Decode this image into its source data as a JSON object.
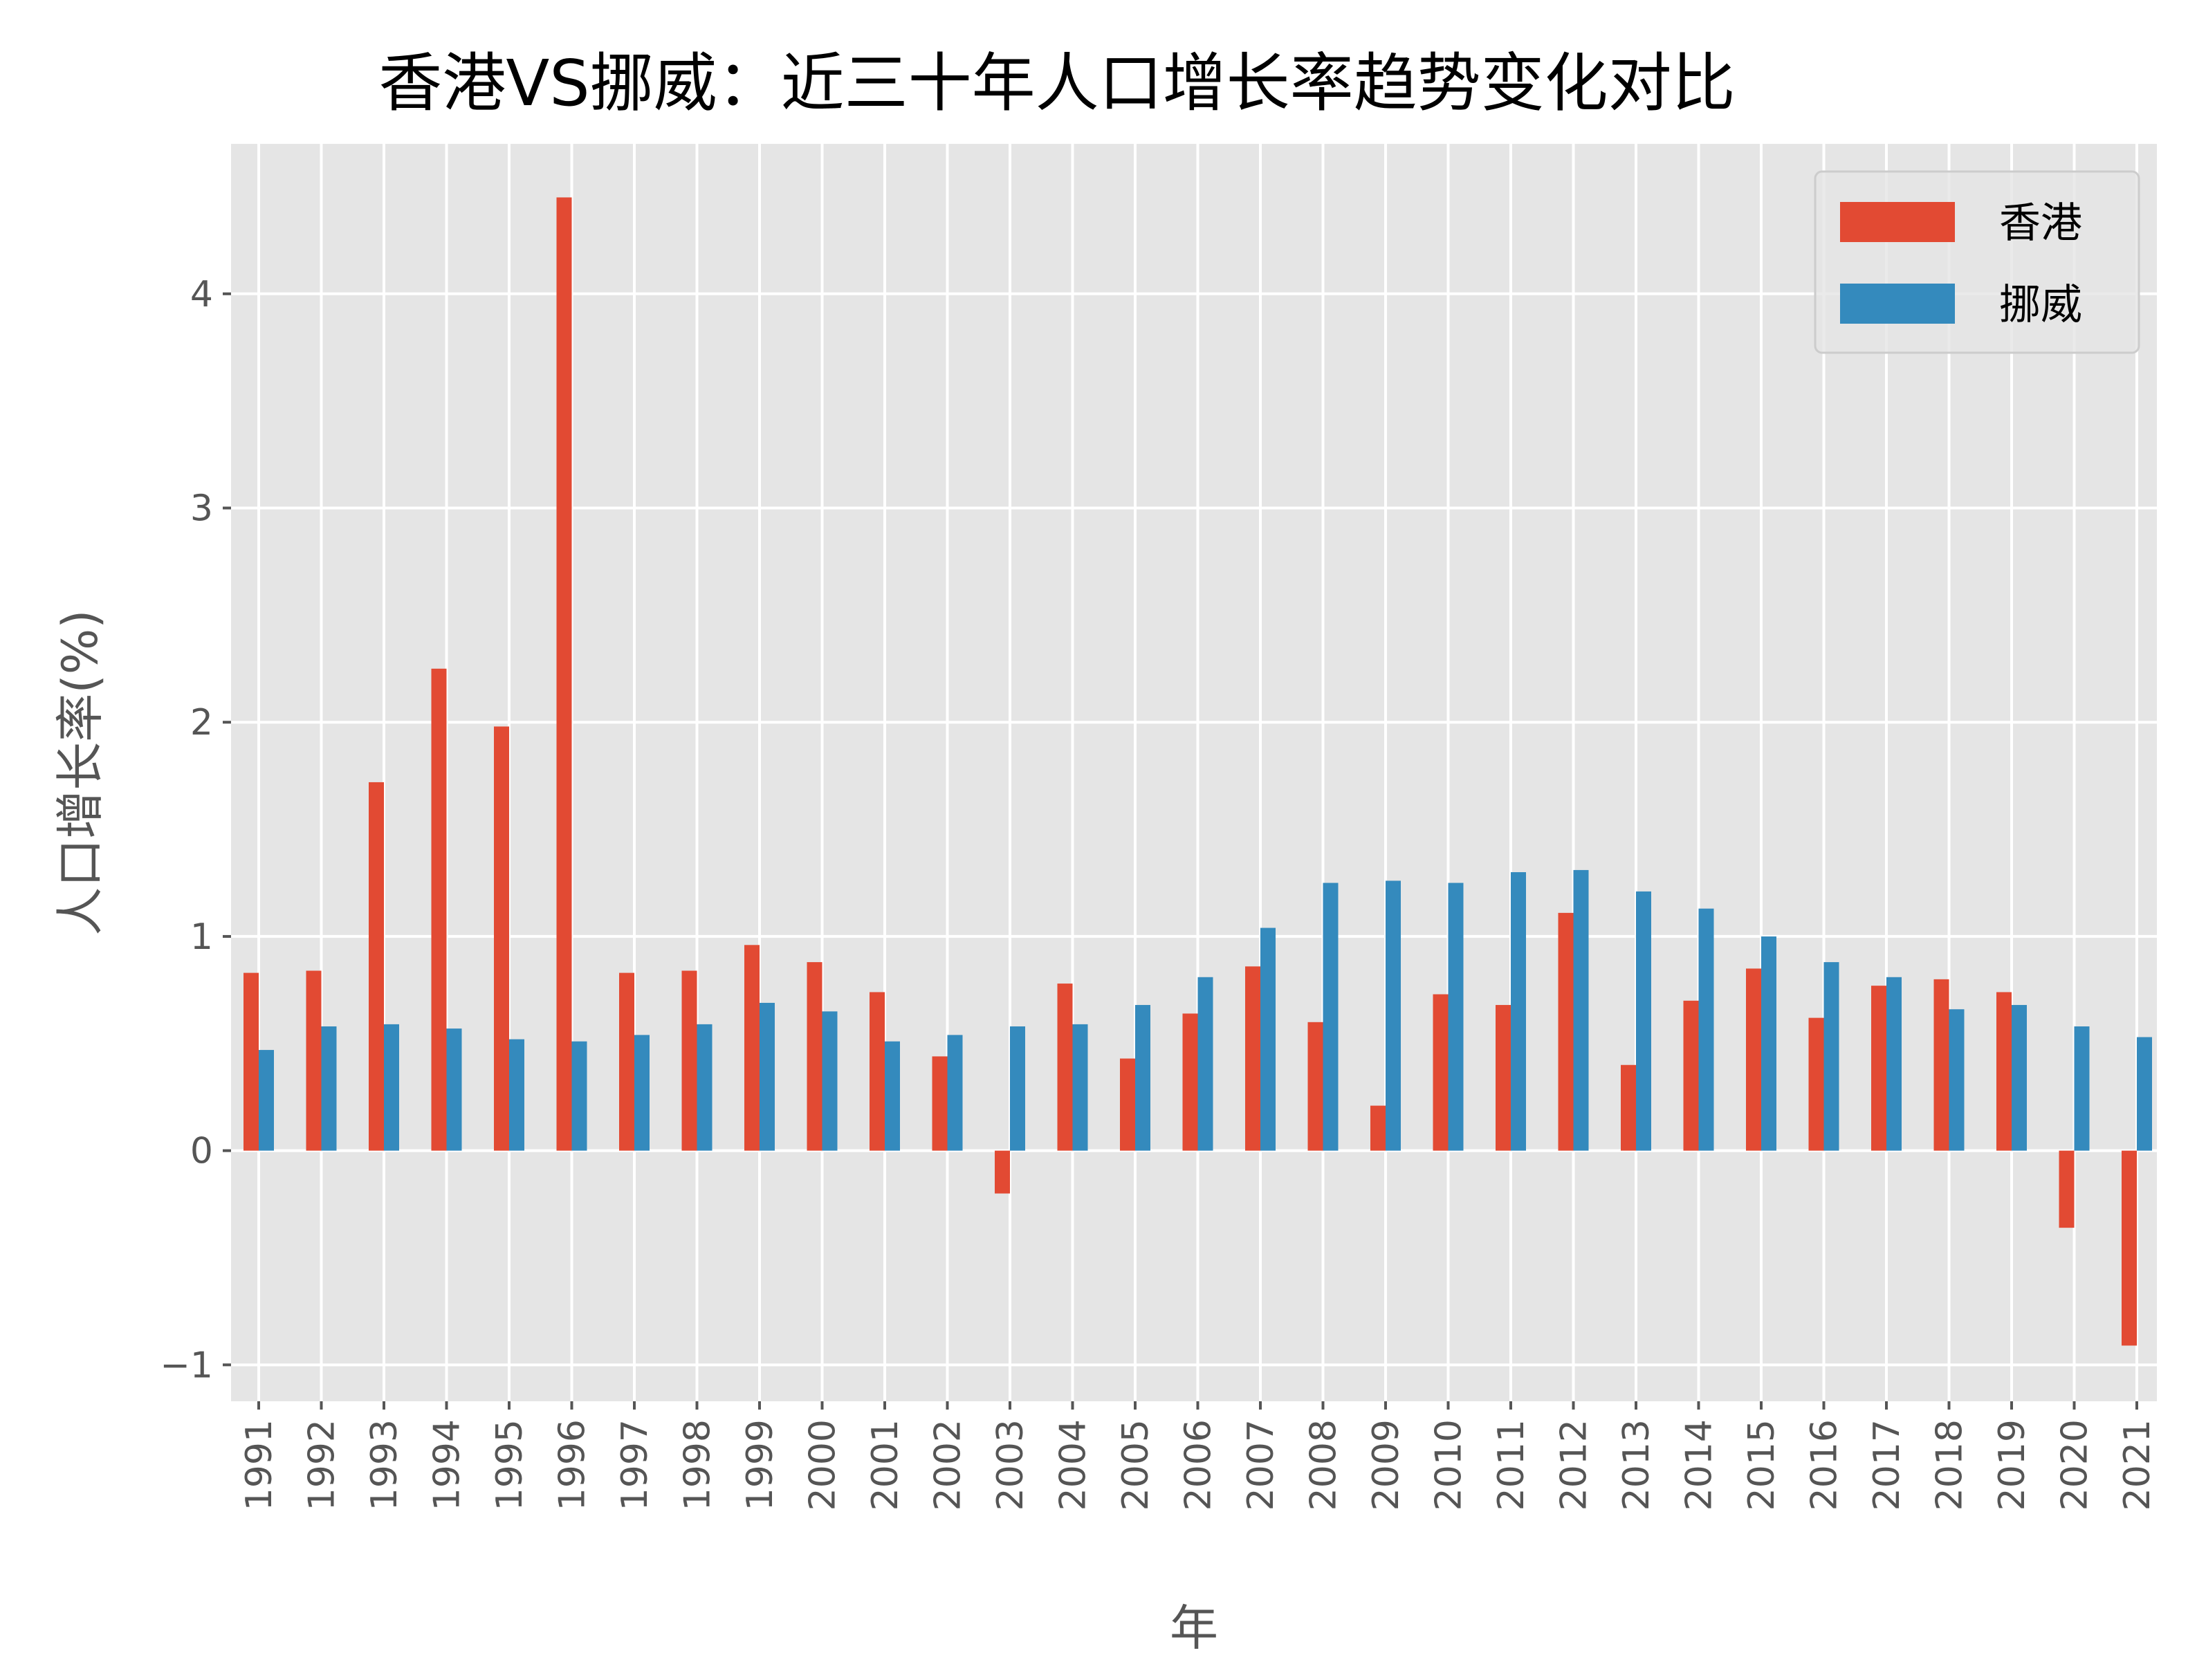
{
  "chart_data": {
    "type": "bar",
    "title": "香港VS挪威：近三十年人口增长率趋势变化对比",
    "xlabel": "年",
    "ylabel": "人口增长率(%)",
    "categories": [
      "1991",
      "1992",
      "1993",
      "1994",
      "1995",
      "1996",
      "1997",
      "1998",
      "1999",
      "2000",
      "2001",
      "2002",
      "2003",
      "2004",
      "2005",
      "2006",
      "2007",
      "2008",
      "2009",
      "2010",
      "2011",
      "2012",
      "2013",
      "2014",
      "2015",
      "2016",
      "2017",
      "2018",
      "2019",
      "2020",
      "2021"
    ],
    "series": [
      {
        "name": "香港",
        "color": "#E24A33",
        "values": [
          0.83,
          0.84,
          1.72,
          2.25,
          1.98,
          4.45,
          0.83,
          0.84,
          0.96,
          0.88,
          0.74,
          0.44,
          -0.2,
          0.78,
          0.43,
          0.64,
          0.86,
          0.6,
          0.21,
          0.73,
          0.68,
          1.11,
          0.4,
          0.7,
          0.85,
          0.62,
          0.77,
          0.8,
          0.74,
          -0.36,
          -0.91
        ]
      },
      {
        "name": "挪威",
        "color": "#348ABD",
        "values": [
          0.47,
          0.58,
          0.59,
          0.57,
          0.52,
          0.51,
          0.54,
          0.59,
          0.69,
          0.65,
          0.51,
          0.54,
          0.58,
          0.59,
          0.68,
          0.81,
          1.04,
          1.25,
          1.26,
          1.25,
          1.3,
          1.31,
          1.21,
          1.13,
          1.0,
          0.88,
          0.81,
          0.66,
          0.68,
          0.58,
          0.53
        ]
      }
    ],
    "ylim": [
      -1.17,
      4.7
    ],
    "yticks": [
      -1,
      0,
      1,
      2,
      3,
      4
    ],
    "ytick_labels": [
      "−1",
      "0",
      "1",
      "2",
      "3",
      "4"
    ],
    "grid": true,
    "legend_position": "top-right",
    "plot_background": "#E5E5E5",
    "grid_color": "#FFFFFF"
  }
}
